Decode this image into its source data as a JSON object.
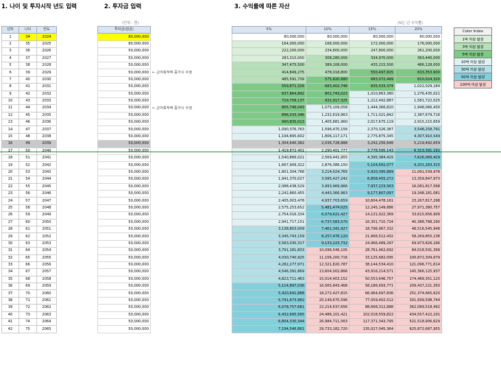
{
  "sections": {
    "s1": "1. 나이 및 투자시작 년도 입력",
    "s2": "2. 투자금 입력",
    "s3": "3. 수익률에 따른 자산"
  },
  "notes": {
    "unit": "(단위 : 원)",
    "after": "(N는 년 수익률)"
  },
  "left_headers": [
    "년차",
    "나이",
    "연도"
  ],
  "amount_header": "투자금(원금)",
  "rate_headers": [
    "5%",
    "10%",
    "15%",
    "20%"
  ],
  "memo": "← 근어축적액 증가시 수정",
  "highlight_row": 16,
  "legend": {
    "title": "Color Index",
    "items": [
      {
        "label": "1억 이상 달성",
        "color": "#d9efd9"
      },
      {
        "label": "3억 이상 달성",
        "color": "#b6e0b8"
      },
      {
        "label": "5억 이상 달성",
        "color": "#7dc986"
      },
      {
        "label": "10억 이상 달성",
        "color": "#dff1f3"
      },
      {
        "label": "30억 이상 달성",
        "color": "#b3dfe6"
      },
      {
        "label": "50억 이상 달성",
        "color": "#85cfdc"
      },
      {
        "label": "100억 이상 달성",
        "color": "#f7cfcf"
      }
    ]
  },
  "rows": [
    {
      "n": "1",
      "age": "34",
      "year": "2024",
      "amount": "80,000,000",
      "v": [
        "80,000,000",
        "80,000,000",
        "80,000,000",
        "80,000,000"
      ]
    },
    {
      "n": "2",
      "age": "35",
      "year": "2025",
      "amount": "80,000,000",
      "v": [
        "164,000,000",
        "168,000,000",
        "172,000,000",
        "176,000,000"
      ]
    },
    {
      "n": "3",
      "age": "36",
      "year": "2026",
      "amount": "50,000,000",
      "v": [
        "222,200,000",
        "234,800,000",
        "247,800,000",
        "261,200,000"
      ]
    },
    {
      "n": "4",
      "age": "37",
      "year": "2027",
      "amount": "50,000,000",
      "v": [
        "283,310,000",
        "308,280,000",
        "334,970,000",
        "363,440,000"
      ]
    },
    {
      "n": "5",
      "age": "38",
      "year": "2028",
      "amount": "50,000,000",
      "v": [
        "347,475,500",
        "389,108,000",
        "435,215,500",
        "486,128,000"
      ]
    },
    {
      "n": "6",
      "age": "39",
      "year": "2029",
      "amount": "50,000,000",
      "v": [
        "414,849,275",
        "478,018,800",
        "550,497,825",
        "633,353,600"
      ],
      "memo": true
    },
    {
      "n": "7",
      "age": "40",
      "year": "2030",
      "amount": "50,000,000",
      "v": [
        "485,591,739",
        "575,820,680",
        "683,072,499",
        "810,024,320"
      ]
    },
    {
      "n": "8",
      "age": "41",
      "year": "2031",
      "amount": "50,000,000",
      "v": [
        "559,871,326",
        "683,402,748",
        "835,533,374",
        "1,022,029,184"
      ]
    },
    {
      "n": "9",
      "age": "42",
      "year": "2032",
      "amount": "50,000,000",
      "v": [
        "637,864,892",
        "801,743,023",
        "1,010,863,380",
        "1,276,435,021"
      ]
    },
    {
      "n": "10",
      "age": "43",
      "year": "2033",
      "amount": "50,000,000",
      "v": [
        "719,758,137",
        "931,917,325",
        "1,212,492,887",
        "1,581,722,025"
      ]
    },
    {
      "n": "11",
      "age": "44",
      "year": "2034",
      "amount": "50,000,000",
      "v": [
        "805,746,043",
        "1,075,109,058",
        "1,444,366,820",
        "1,948,066,430"
      ],
      "memo": true
    },
    {
      "n": "12",
      "age": "45",
      "year": "2035",
      "amount": "50,000,000",
      "v": [
        "896,033,346",
        "1,232,619,963",
        "1,711,021,842",
        "2,387,679,716"
      ]
    },
    {
      "n": "13",
      "age": "46",
      "year": "2036",
      "amount": "50,000,000",
      "v": [
        "990,835,013",
        "1,405,881,960",
        "2,017,675,119",
        "2,915,215,659"
      ]
    },
    {
      "n": "14",
      "age": "47",
      "year": "2037",
      "amount": "50,000,000",
      "v": [
        "1,090,376,763",
        "1,596,470,156",
        "2,370,326,387",
        "3,548,258,791"
      ]
    },
    {
      "n": "15",
      "age": "48",
      "year": "2038",
      "amount": "50,000,000",
      "v": [
        "1,194,895,602",
        "1,806,117,171",
        "2,775,875,345",
        "4,307,910,549"
      ]
    },
    {
      "n": "16",
      "age": "49",
      "year": "2039",
      "amount": "50,000,000",
      "v": [
        "1,304,640,382",
        "2,036,728,888",
        "3,242,256,646",
        "5,219,492,659"
      ]
    },
    {
      "n": "17",
      "age": "50",
      "year": "2040",
      "amount": "50,000,000",
      "v": [
        "1,419,872,401",
        "2,290,401,777",
        "3,778,595,143",
        "6,313,391,191"
      ]
    },
    {
      "n": "18",
      "age": "51",
      "year": "2041",
      "amount": "50,000,000",
      "v": [
        "1,540,866,021",
        "2,569,441,955",
        "4,395,384,415",
        "7,626,069,429"
      ]
    },
    {
      "n": "19",
      "age": "52",
      "year": "2042",
      "amount": "50,000,000",
      "v": [
        "1,667,909,322",
        "2,876,386,150",
        "5,104,692,077",
        "9,201,283,315"
      ]
    },
    {
      "n": "20",
      "age": "53",
      "year": "2043",
      "amount": "50,000,000",
      "v": [
        "1,801,304,788",
        "3,214,024,765",
        "5,920,395,889",
        "11,091,539,978"
      ]
    },
    {
      "n": "21",
      "age": "54",
      "year": "2044",
      "amount": "50,000,000",
      "v": [
        "1,941,370,027",
        "3,585,427,242",
        "6,858,455,272",
        "13,359,847,973"
      ]
    },
    {
      "n": "22",
      "age": "55",
      "year": "2045",
      "amount": "50,000,000",
      "v": [
        "2,088,438,529",
        "3,993,969,966",
        "7,937,223,563",
        "16,081,817,568"
      ]
    },
    {
      "n": "23",
      "age": "56",
      "year": "2046",
      "amount": "50,000,000",
      "v": [
        "2,242,860,455",
        "4,443,366,963",
        "9,177,807,097",
        "19,348,181,081"
      ]
    },
    {
      "n": "24",
      "age": "57",
      "year": "2047",
      "amount": "50,000,000",
      "v": [
        "2,405,003,478",
        "4,937,703,659",
        "10,604,478,161",
        "23,267,817,298"
      ]
    },
    {
      "n": "25",
      "age": "58",
      "year": "2048",
      "amount": "50,000,000",
      "v": [
        "2,575,253,652",
        "5,481,474,025",
        "12,245,149,886",
        "27,971,380,757"
      ]
    },
    {
      "n": "26",
      "age": "59",
      "year": "2049",
      "amount": "50,000,000",
      "v": [
        "2,754,016,334",
        "6,079,621,427",
        "14,131,922,369",
        "33,615,656,909"
      ]
    },
    {
      "n": "27",
      "age": "60",
      "year": "2050",
      "amount": "50,000,000",
      "v": [
        "2,941,717,151",
        "6,737,583,570",
        "16,301,710,724",
        "40,388,788,290"
      ]
    },
    {
      "n": "28",
      "age": "61",
      "year": "2051",
      "amount": "50,000,000",
      "v": [
        "3,138,803,009",
        "7,461,341,927",
        "18,796,967,332",
        "48,516,545,948"
      ]
    },
    {
      "n": "29",
      "age": "62",
      "year": "2052",
      "amount": "50,000,000",
      "v": [
        "3,345,743,159",
        "8,257,476,120",
        "21,666,512,432",
        "58,269,855,138"
      ]
    },
    {
      "n": "30",
      "age": "63",
      "year": "2053",
      "amount": "50,000,000",
      "v": [
        "3,563,030,317",
        "9,133,223,732",
        "24,966,489,297",
        "69,973,826,166"
      ]
    },
    {
      "n": "31",
      "age": "64",
      "year": "2054",
      "amount": "50,000,000",
      "v": [
        "3,791,181,833",
        "10,096,546,105",
        "28,761,462,692",
        "84,018,591,399"
      ]
    },
    {
      "n": "32",
      "age": "65",
      "year": "2055",
      "amount": "50,000,000",
      "v": [
        "4,030,740,925",
        "11,156,200,716",
        "33,125,682,095",
        "100,872,309,679"
      ]
    },
    {
      "n": "33",
      "age": "66",
      "year": "2056",
      "amount": "50,000,000",
      "v": [
        "4,282,277,971",
        "12,321,820,787",
        "38,144,534,410",
        "121,096,771,614"
      ]
    },
    {
      "n": "34",
      "age": "67",
      "year": "2057",
      "amount": "50,000,000",
      "v": [
        "4,546,391,869",
        "13,604,002,866",
        "43,916,214,571",
        "145,366,125,937"
      ]
    },
    {
      "n": "35",
      "age": "68",
      "year": "2058",
      "amount": "50,000,000",
      "v": [
        "4,823,711,463",
        "15,014,403,152",
        "50,553,646,757",
        "174,489,351,125"
      ]
    },
    {
      "n": "36",
      "age": "69",
      "year": "2059",
      "amount": "50,000,000",
      "v": [
        "5,114,897,036",
        "16,565,843,468",
        "58,186,693,771",
        "209,437,221,350"
      ]
    },
    {
      "n": "37",
      "age": "70",
      "year": "2060",
      "amount": "50,000,000",
      "v": [
        "5,420,641,888",
        "18,272,427,815",
        "66,964,697,836",
        "251,374,665,620"
      ]
    },
    {
      "n": "38",
      "age": "71",
      "year": "2061",
      "amount": "50,000,000",
      "v": [
        "5,741,673,982",
        "20,149,670,596",
        "77,059,402,512",
        "301,699,598,744"
      ]
    },
    {
      "n": "39",
      "age": "72",
      "year": "2062",
      "amount": "50,000,000",
      "v": [
        "6,078,757,681",
        "22,214,637,656",
        "88,668,312,888",
        "362,089,518,492"
      ]
    },
    {
      "n": "40",
      "age": "73",
      "year": "2063",
      "amount": "50,000,000",
      "v": [
        "6,432,695,565",
        "24,486,101,421",
        "102,018,559,822",
        "434,557,422,191"
      ]
    },
    {
      "n": "41",
      "age": "74",
      "year": "2064",
      "amount": "50,000,000",
      "v": [
        "6,804,330,344",
        "26,984,711,563",
        "117,371,343,795",
        "521,518,906,629"
      ]
    },
    {
      "n": "42",
      "age": "75",
      "year": "2065",
      "amount": "50,000,000",
      "v": [
        "7,194,546,861",
        "29,733,182,720",
        "135,027,045,364",
        "625,872,687,955"
      ]
    }
  ]
}
